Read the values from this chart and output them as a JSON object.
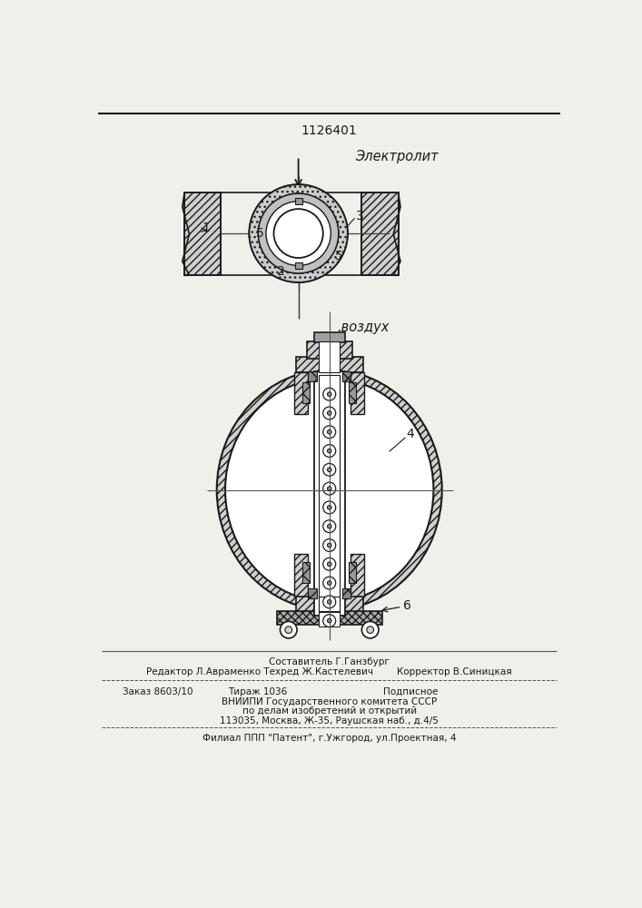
{
  "patent_number": "1126401",
  "label_elektrolit": "Электролит",
  "label_vozduh": "воздух",
  "footer_line1": "Составитель Г.Ганзбург",
  "footer_line2": "Редактор Л.Авраменко Техред Ж.Кастелевич        Корректор В.Синицкая",
  "footer_line3_a": "Заказ 8603/10",
  "footer_line3_b": "Тираж 1036",
  "footer_line3_c": "Подписное",
  "footer_line4": "ВНИИПИ Государственного комитета СССР",
  "footer_line5": "по делам изобретений и открытий",
  "footer_line6": "113035, Москва, Ж-35, Раушская наб., д.4/5",
  "footer_line7": "Филиал ППП \"Патент\", г.Ужгород, ул.Проектная, 4",
  "bg_color": "#f0efea",
  "line_color": "#1a1a1a",
  "gray_light": "#d0d0d0",
  "gray_med": "#a0a0a0",
  "gray_dark": "#707070",
  "white": "#ffffff"
}
